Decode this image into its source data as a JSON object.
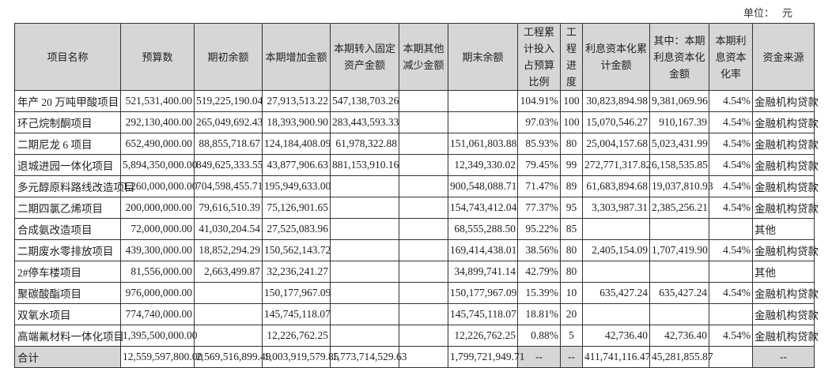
{
  "unit": {
    "label": "单位：",
    "value": "元"
  },
  "headers": [
    "项目名称",
    "预算数",
    "期初余额",
    "本期增加金额",
    "本期转入固定资产金额",
    "本期其他减少金额",
    "期末余额",
    "工程累计投入占预算比例",
    "工程进度",
    "利息资本化累计金额",
    "其中：本期利息资本化金额",
    "本期利息资本化率",
    "资金来源"
  ],
  "rows": [
    [
      "年产 20 万吨甲酸项目",
      "521,531,400.00",
      "519,225,190.04",
      "27,913,513.22",
      "547,138,703.26",
      "",
      "",
      "104.91%",
      "100",
      "30,823,894.98",
      "9,381,069.96",
      "4.54%",
      "金融机构贷款"
    ],
    [
      "环己烷制酮项目",
      "292,130,400.00",
      "265,049,692.43",
      "18,393,900.90",
      "283,443,593.33",
      "",
      "",
      "97.03%",
      "100",
      "15,070,546.27",
      "910,167.39",
      "4.54%",
      "金融机构贷款"
    ],
    [
      "二期尼龙 6 项目",
      "652,490,000.00",
      "88,855,718.67",
      "124,184,408.09",
      "61,978,322.88",
      "",
      "151,061,803.88",
      "85.93%",
      "80",
      "25,004,157.68",
      "5,023,431.99",
      "4.54%",
      "金融机构贷款"
    ],
    [
      "退城进园一体化项目",
      "5,894,350,000.00",
      "849,625,333.55",
      "43,877,906.63",
      "881,153,910.16",
      "",
      "12,349,330.02",
      "79.45%",
      "99",
      "272,771,317.82",
      "6,158,535.85",
      "4.54%",
      "金融机构贷款"
    ],
    [
      "多元醇原料路线改造项目",
      "1,260,000,000.00",
      "704,598,455.71",
      "195,949,633.00",
      "",
      "",
      "900,548,088.71",
      "71.47%",
      "89",
      "61,683,894.68",
      "19,037,810.93",
      "4.54%",
      "金融机构贷款"
    ],
    [
      "二期四氯乙烯项目",
      "200,000,000.00",
      "79,616,510.39",
      "75,126,901.65",
      "",
      "",
      "154,743,412.04",
      "77.37%",
      "95",
      "3,303,987.31",
      "2,385,256.21",
      "4.54%",
      "金融机构贷款"
    ],
    [
      "合成氨改造项目",
      "72,000,000.00",
      "41,030,204.54",
      "27,525,083.96",
      "",
      "",
      "68,555,288.50",
      "95.22%",
      "85",
      "",
      "",
      "",
      "其他"
    ],
    [
      "二期废水零排放项目",
      "439,300,000.00",
      "18,852,294.29",
      "150,562,143.72",
      "",
      "",
      "169,414,438.01",
      "38.56%",
      "80",
      "2,405,154.09",
      "1,707,419.90",
      "4.54%",
      "金融机构贷款"
    ],
    [
      "2#停车楼项目",
      "81,556,000.00",
      "2,663,499.87",
      "32,236,241.27",
      "",
      "",
      "34,899,741.14",
      "42.79%",
      "80",
      "",
      "",
      "",
      "其他"
    ],
    [
      "聚碳酸酯项目",
      "976,000,000.00",
      "",
      "150,177,967.09",
      "",
      "",
      "150,177,967.09",
      "15.39%",
      "10",
      "635,427.24",
      "635,427.24",
      "4.54%",
      "金融机构贷款"
    ],
    [
      "双氧水项目",
      "774,740,000.00",
      "",
      "145,745,118.07",
      "",
      "",
      "145,745,118.07",
      "18.81%",
      "20",
      "",
      "",
      "",
      "金融机构贷款"
    ],
    [
      "高端氟材料一体化项目",
      "1,395,500,000.00",
      "",
      "12,226,762.25",
      "",
      "",
      "12,226,762.25",
      "0.88%",
      "5",
      "42,736.40",
      "42,736.40",
      "4.54%",
      "金融机构贷款"
    ]
  ],
  "total": [
    "合计",
    "12,559,597,800.00",
    "2,569,516,899.49",
    "1,003,919,579.85",
    "1,773,714,529.63",
    "",
    "1,799,721,949.71",
    "--",
    "--",
    "411,741,116.47",
    "45,281,855.87",
    "",
    "--"
  ]
}
